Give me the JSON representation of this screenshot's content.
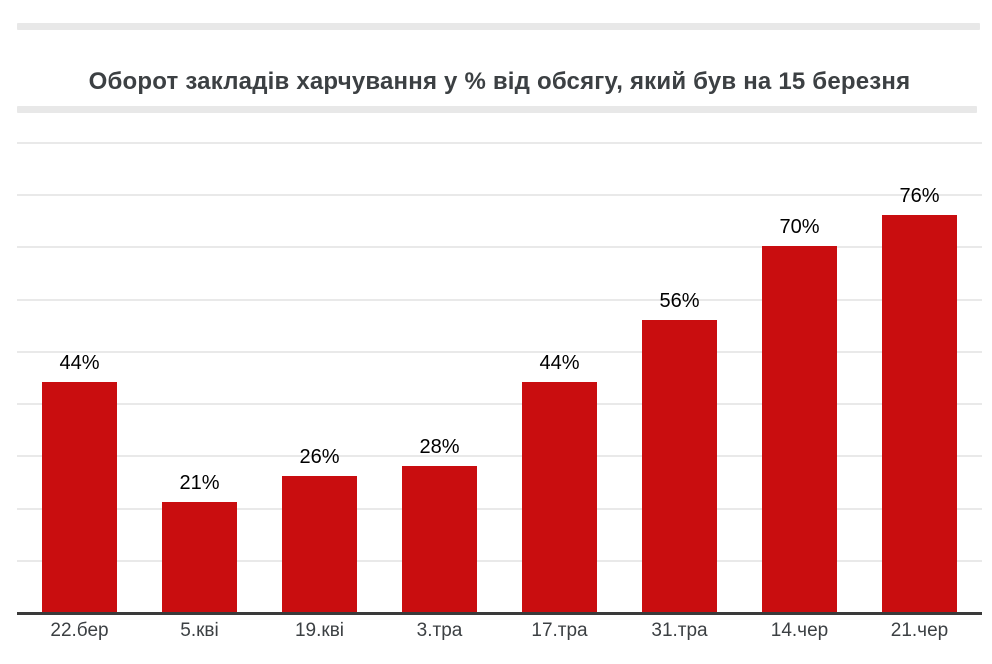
{
  "title": "Оборот закладів харчування у % від обсягу, який був на 15 березня",
  "chart_data": {
    "type": "bar",
    "title": "Оборот закладів харчування у % від обсягу, який був на 15 березня",
    "categories": [
      "22.бер",
      "5.кві",
      "19.кві",
      "3.тра",
      "17.тра",
      "31.тра",
      "14.чер",
      "21.чер"
    ],
    "values": [
      44,
      21,
      26,
      28,
      44,
      56,
      70,
      76
    ],
    "value_labels": [
      "44%",
      "21%",
      "26%",
      "28%",
      "44%",
      "56%",
      "70%",
      "76%"
    ],
    "xlabel": "",
    "ylabel": "",
    "ylim": [
      0,
      90
    ],
    "grid_step": 10,
    "grid": true,
    "legend": "none",
    "y_axis_tick_labels_visible": false,
    "colors": {
      "bar": "#c90d0f",
      "value_label": "#000000",
      "axis_label": "#3c4043",
      "title": "#3c4043",
      "gridline": "#e9e9e9",
      "baseline": "#3a3a3a",
      "divider_stripe": "#e8e8e8",
      "background": "#ffffff"
    }
  }
}
